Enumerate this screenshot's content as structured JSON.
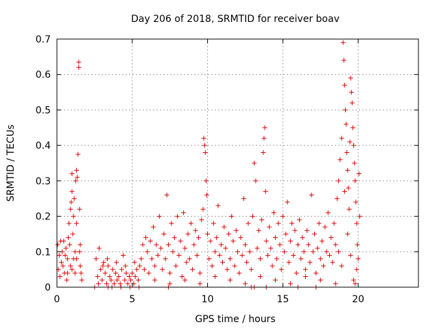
{
  "chart_data": {
    "type": "scatter",
    "title": "Day 206 of 2018, SRMTID for receiver boav",
    "xlabel": "GPS time / hours",
    "ylabel": "SRMTID / TECUs",
    "xlim": [
      0,
      24
    ],
    "ylim": [
      0,
      0.7
    ],
    "xticks": [
      0,
      5,
      10,
      15,
      20
    ],
    "yticks": [
      0,
      0.1,
      0.2,
      0.3,
      0.4,
      0.5,
      0.6,
      0.7
    ],
    "xtick_labels": [
      "0",
      "5",
      "10",
      "15",
      "20"
    ],
    "ytick_labels": [
      "0",
      "0.1",
      "0.2",
      "0.3",
      "0.4",
      "0.5",
      "0.6",
      "0.7"
    ],
    "grid": true,
    "marker": "+",
    "color": "#e00000",
    "series": [
      {
        "name": "SRMTID",
        "points": [
          [
            0.05,
            0.12
          ],
          [
            0.1,
            0.05
          ],
          [
            0.15,
            0.09
          ],
          [
            0.2,
            0.03
          ],
          [
            0.25,
            0.13
          ],
          [
            0.3,
            0.07
          ],
          [
            0.35,
            0.1
          ],
          [
            0.4,
            0.06
          ],
          [
            0.45,
            0.13
          ],
          [
            0.5,
            0.04
          ],
          [
            0.55,
            0.09
          ],
          [
            0.6,
            0.11
          ],
          [
            0.65,
            0.02
          ],
          [
            0.7,
            0.08
          ],
          [
            0.75,
            0.14
          ],
          [
            0.8,
            0.18
          ],
          [
            0.85,
            0.12
          ],
          [
            0.9,
            0.22
          ],
          [
            0.95,
            0.24
          ],
          [
            1.0,
            0.27
          ],
          [
            1.0,
            0.32
          ],
          [
            1.05,
            0.15
          ],
          [
            1.1,
            0.2
          ],
          [
            1.1,
            0.08
          ],
          [
            1.15,
            0.25
          ],
          [
            1.2,
            0.1
          ],
          [
            1.25,
            0.3
          ],
          [
            1.3,
            0.33
          ],
          [
            1.3,
            0.18
          ],
          [
            1.35,
            0.31
          ],
          [
            1.4,
            0.375
          ],
          [
            1.45,
            0.62
          ],
          [
            1.45,
            0.635
          ],
          [
            1.5,
            0.22
          ],
          [
            1.55,
            0.12
          ],
          [
            1.55,
            0.06
          ],
          [
            1.6,
            0.04
          ],
          [
            1.65,
            0.02
          ],
          [
            1.0,
            0.05
          ],
          [
            1.2,
            0.04
          ],
          [
            0.7,
            0.04
          ],
          [
            0.9,
            0.06
          ],
          [
            1.3,
            0.08
          ],
          [
            1.5,
            0.1
          ],
          [
            2.6,
            0.08
          ],
          [
            2.7,
            0.03
          ],
          [
            2.8,
            0.11
          ],
          [
            2.9,
            0.05
          ],
          [
            3.0,
            0.02
          ],
          [
            3.1,
            0.07
          ],
          [
            3.2,
            0.04
          ],
          [
            3.3,
            0.01
          ],
          [
            3.4,
            0.06
          ],
          [
            3.5,
            0.03
          ],
          [
            3.6,
            0.02
          ],
          [
            3.7,
            0.05
          ],
          [
            3.8,
            0.01
          ],
          [
            3.9,
            0.04
          ],
          [
            4.0,
            0.02
          ],
          [
            4.1,
            0.03
          ],
          [
            4.2,
            0.01
          ],
          [
            4.3,
            0.05
          ],
          [
            4.4,
            0.09
          ],
          [
            4.5,
            0.02
          ],
          [
            4.6,
            0.04
          ],
          [
            4.7,
            0.01
          ],
          [
            4.8,
            0.03
          ],
          [
            4.9,
            0.02
          ],
          [
            5.0,
            0.04
          ],
          [
            5.1,
            0.01
          ],
          [
            5.2,
            0.03
          ],
          [
            5.3,
            0.05
          ],
          [
            5.4,
            0.02
          ],
          [
            5.5,
            0.06
          ],
          [
            2.75,
            0.01
          ],
          [
            3.05,
            0.06
          ],
          [
            3.35,
            0.08
          ],
          [
            3.65,
            0.0
          ],
          [
            3.95,
            0.07
          ],
          [
            4.25,
            0.0
          ],
          [
            4.55,
            0.06
          ],
          [
            4.85,
            0.0
          ],
          [
            5.15,
            0.07
          ],
          [
            5.45,
            0.0
          ],
          [
            5.6,
            0.08
          ],
          [
            5.7,
            0.12
          ],
          [
            5.8,
            0.05
          ],
          [
            5.9,
            0.14
          ],
          [
            6.0,
            0.1
          ],
          [
            6.1,
            0.04
          ],
          [
            6.2,
            0.13
          ],
          [
            6.3,
            0.08
          ],
          [
            6.4,
            0.17
          ],
          [
            6.5,
            0.06
          ],
          [
            6.6,
            0.12
          ],
          [
            6.7,
            0.09
          ],
          [
            6.8,
            0.2
          ],
          [
            6.9,
            0.11
          ],
          [
            7.0,
            0.05
          ],
          [
            7.1,
            0.15
          ],
          [
            7.2,
            0.08
          ],
          [
            7.3,
            0.26
          ],
          [
            7.4,
            0.12
          ],
          [
            7.5,
            0.04
          ],
          [
            7.6,
            0.18
          ],
          [
            7.7,
            0.1
          ],
          [
            7.8,
            0.14
          ],
          [
            7.9,
            0.06
          ],
          [
            8.0,
            0.2
          ],
          [
            8.1,
            0.09
          ],
          [
            8.2,
            0.13
          ],
          [
            8.3,
            0.03
          ],
          [
            8.4,
            0.21
          ],
          [
            8.5,
            0.11
          ],
          [
            8.6,
            0.07
          ],
          [
            8.7,
            0.15
          ],
          [
            8.8,
            0.08
          ],
          [
            8.9,
            0.18
          ],
          [
            9.0,
            0.05
          ],
          [
            9.1,
            0.12
          ],
          [
            9.2,
            0.16
          ],
          [
            9.3,
            0.09
          ],
          [
            9.4,
            0.14
          ],
          [
            9.5,
            0.04
          ],
          [
            9.6,
            0.19
          ],
          [
            9.7,
            0.22
          ],
          [
            9.75,
            0.42
          ],
          [
            9.8,
            0.4
          ],
          [
            9.85,
            0.38
          ],
          [
            9.9,
            0.3
          ],
          [
            9.95,
            0.26
          ],
          [
            10.0,
            0.15
          ],
          [
            10.1,
            0.08
          ],
          [
            10.2,
            0.13
          ],
          [
            10.3,
            0.06
          ],
          [
            10.4,
            0.18
          ],
          [
            10.5,
            0.1
          ],
          [
            10.6,
            0.14
          ],
          [
            10.7,
            0.23
          ],
          [
            10.8,
            0.09
          ],
          [
            10.9,
            0.12
          ],
          [
            11.0,
            0.07
          ],
          [
            11.1,
            0.17
          ],
          [
            11.2,
            0.11
          ],
          [
            11.3,
            0.05
          ],
          [
            11.4,
            0.15
          ],
          [
            11.5,
            0.08
          ],
          [
            11.6,
            0.2
          ],
          [
            11.7,
            0.13
          ],
          [
            11.8,
            0.06
          ],
          [
            11.9,
            0.16
          ],
          [
            12.0,
            0.1
          ],
          [
            12.1,
            0.04
          ],
          [
            12.2,
            0.14
          ],
          [
            12.3,
            0.09
          ],
          [
            12.4,
            0.25
          ],
          [
            12.5,
            0.12
          ],
          [
            12.6,
            0.07
          ],
          [
            12.7,
            0.18
          ],
          [
            12.8,
            0.1
          ],
          [
            12.9,
            0.05
          ],
          [
            13.0,
            0.2
          ],
          [
            13.1,
            0.35
          ],
          [
            13.2,
            0.3
          ],
          [
            13.3,
            0.11
          ],
          [
            13.4,
            0.16
          ],
          [
            13.5,
            0.08
          ],
          [
            13.6,
            0.19
          ],
          [
            13.7,
            0.38
          ],
          [
            13.75,
            0.42
          ],
          [
            13.8,
            0.45
          ],
          [
            13.85,
            0.27
          ],
          [
            13.9,
            0.13
          ],
          [
            14.0,
            0.09
          ],
          [
            14.1,
            0.17
          ],
          [
            14.2,
            0.11
          ],
          [
            14.3,
            0.06
          ],
          [
            14.4,
            0.21
          ],
          [
            14.5,
            0.14
          ],
          [
            14.6,
            0.08
          ],
          [
            14.7,
            0.18
          ],
          [
            14.8,
            0.12
          ],
          [
            14.9,
            0.05
          ],
          [
            15.0,
            0.2
          ],
          [
            15.1,
            0.1
          ],
          [
            15.2,
            0.15
          ],
          [
            15.3,
            0.24
          ],
          [
            15.4,
            0.07
          ],
          [
            15.5,
            0.13
          ],
          [
            15.6,
            0.18
          ],
          [
            15.7,
            0.09
          ],
          [
            15.8,
            0.16
          ],
          [
            15.9,
            0.04
          ],
          [
            16.0,
            0.12
          ],
          [
            16.1,
            0.19
          ],
          [
            16.2,
            0.08
          ],
          [
            16.3,
            0.14
          ],
          [
            16.4,
            0.1
          ],
          [
            16.5,
            0.05
          ],
          [
            16.6,
            0.16
          ],
          [
            16.7,
            0.12
          ],
          [
            16.8,
            0.07
          ],
          [
            16.9,
            0.26
          ],
          [
            17.0,
            0.1
          ],
          [
            17.1,
            0.15
          ],
          [
            17.2,
            0.04
          ],
          [
            17.3,
            0.11
          ],
          [
            17.4,
            0.18
          ],
          [
            17.5,
            0.08
          ],
          [
            17.6,
            0.13
          ],
          [
            17.7,
            0.06
          ],
          [
            17.8,
            0.17
          ],
          [
            17.9,
            0.1
          ],
          [
            18.0,
            0.21
          ],
          [
            18.1,
            0.09
          ],
          [
            18.2,
            0.14
          ],
          [
            18.3,
            0.07
          ],
          [
            18.4,
            0.18
          ],
          [
            18.5,
            0.12
          ],
          [
            18.6,
            0.25
          ],
          [
            18.7,
            0.3
          ],
          [
            18.8,
            0.36
          ],
          [
            18.9,
            0.42
          ],
          [
            19.0,
            0.69
          ],
          [
            19.05,
            0.64
          ],
          [
            19.1,
            0.57
          ],
          [
            19.15,
            0.5
          ],
          [
            19.2,
            0.46
          ],
          [
            19.25,
            0.38
          ],
          [
            19.3,
            0.33
          ],
          [
            19.35,
            0.28
          ],
          [
            19.4,
            0.22
          ],
          [
            19.45,
            0.41
          ],
          [
            19.5,
            0.59
          ],
          [
            19.55,
            0.55
          ],
          [
            19.6,
            0.52
          ],
          [
            19.65,
            0.45
          ],
          [
            19.7,
            0.4
          ],
          [
            19.75,
            0.35
          ],
          [
            19.8,
            0.3
          ],
          [
            19.85,
            0.24
          ],
          [
            19.9,
            0.18
          ],
          [
            19.95,
            0.12
          ],
          [
            20.0,
            0.08
          ],
          [
            20.05,
            0.32
          ],
          [
            20.1,
            0.2
          ],
          [
            19.7,
            0.02
          ],
          [
            19.8,
            0.01
          ],
          [
            19.9,
            0.05
          ],
          [
            19.5,
            0.09
          ],
          [
            19.3,
            0.15
          ],
          [
            19.1,
            0.27
          ],
          [
            18.9,
            0.06
          ],
          [
            18.7,
            0.1
          ],
          [
            6.5,
            0.02
          ],
          [
            7.5,
            0.01
          ],
          [
            8.5,
            0.02
          ],
          [
            9.5,
            0.01
          ],
          [
            10.5,
            0.03
          ],
          [
            11.5,
            0.02
          ],
          [
            12.5,
            0.01
          ],
          [
            13.5,
            0.03
          ],
          [
            14.5,
            0.02
          ],
          [
            15.5,
            0.01
          ],
          [
            16.5,
            0.03
          ],
          [
            17.5,
            0.02
          ],
          [
            18.5,
            0.01
          ],
          [
            12.9,
            0.0
          ],
          [
            13.1,
            0.0
          ],
          [
            13.9,
            0.0
          ],
          [
            16.0,
            0.0
          ],
          [
            17.2,
            0.0
          ],
          [
            7.4,
            0.0
          ],
          [
            2.5,
            0.0
          ],
          [
            3.4,
            0.0
          ]
        ]
      }
    ]
  }
}
